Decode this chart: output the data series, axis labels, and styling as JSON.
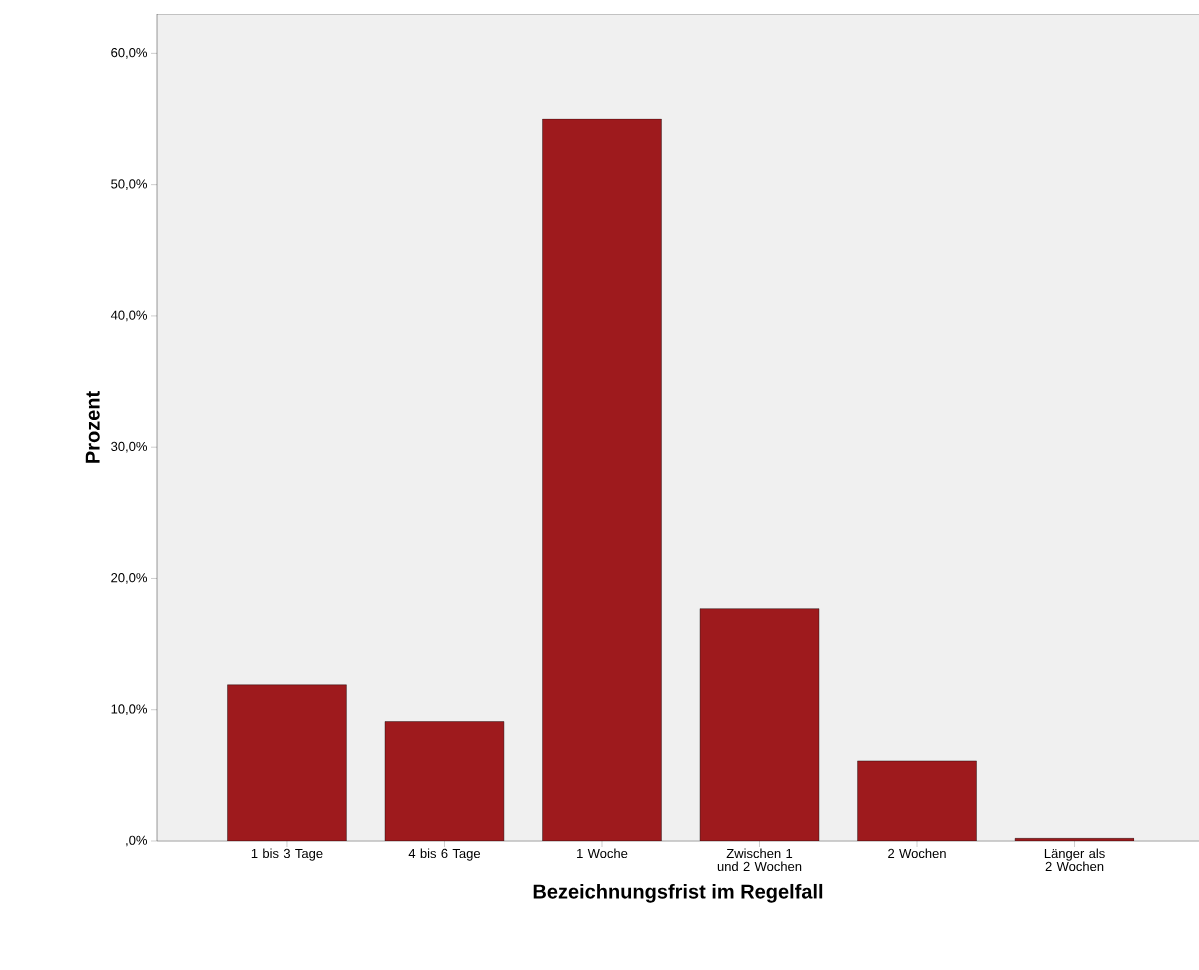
{
  "chart_data": {
    "type": "bar",
    "xlabel": "Bezeichnungsfrist im Regelfall",
    "ylabel": "Prozent",
    "categories": [
      "1 bis 3 Tage",
      "4 bis 6 Tage",
      "1 Woche",
      "Zwischen 1 und 2 Wochen",
      "2 Wochen",
      "Länger als 2 Wochen"
    ],
    "values": [
      11.9,
      9.1,
      55.0,
      17.7,
      6.1,
      0.2
    ],
    "color": "#9e1a1d",
    "ylim": [
      0,
      63
    ],
    "yticks": [
      {
        "value": 0,
        "label": ",0%"
      },
      {
        "value": 10,
        "label": "10,0%"
      },
      {
        "value": 20,
        "label": "20,0%"
      },
      {
        "value": 30,
        "label": "30,0%"
      },
      {
        "value": 40,
        "label": "40,0%"
      },
      {
        "value": 50,
        "label": "50,0%"
      },
      {
        "value": 60,
        "label": "60,0%"
      }
    ],
    "line_style": "solid"
  }
}
